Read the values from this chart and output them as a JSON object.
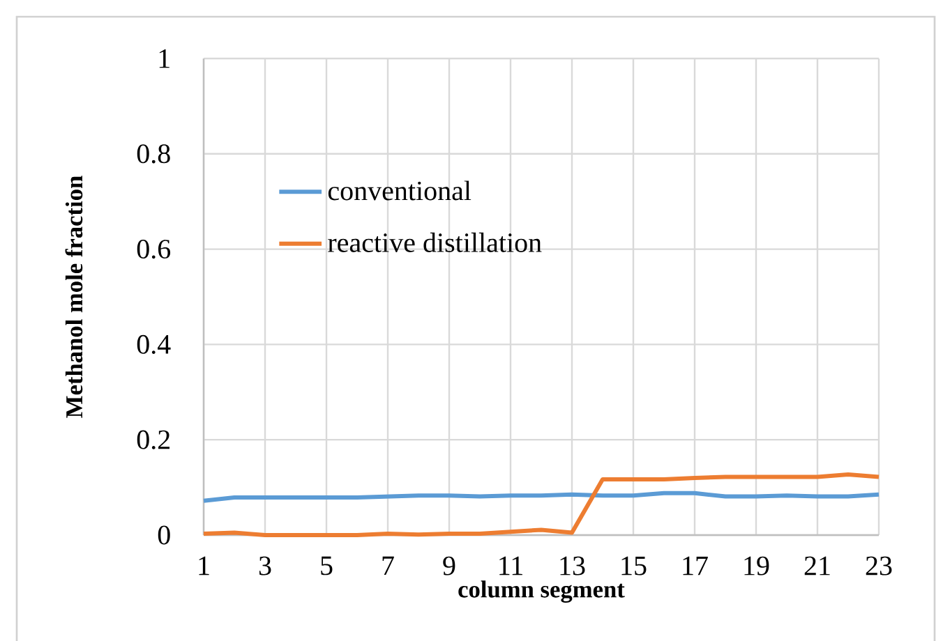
{
  "chart_data": {
    "type": "line",
    "xlabel": "column segment",
    "ylabel": "Methanol mole fraction",
    "categories": [
      "1",
      null,
      "3",
      null,
      "5",
      null,
      "7",
      null,
      "9",
      null,
      "11",
      null,
      "13",
      null,
      "15",
      null,
      "17",
      null,
      "19",
      null,
      "21",
      null,
      "23"
    ],
    "series": [
      {
        "name": "conventional",
        "color": "#5b9bd5",
        "values": [
          0.072,
          0.079,
          0.079,
          0.079,
          0.079,
          0.079,
          0.081,
          0.083,
          0.083,
          0.081,
          0.083,
          0.083,
          0.085,
          0.083,
          0.083,
          0.088,
          0.088,
          0.081,
          0.081,
          0.083,
          0.081,
          0.081,
          0.085
        ]
      },
      {
        "name": "reactive distillation",
        "color": "#ed7d31",
        "values": [
          0.003,
          0.005,
          0.0,
          0.0,
          0.0,
          0.0,
          0.003,
          0.001,
          0.003,
          0.003,
          0.007,
          0.011,
          0.005,
          0.117,
          0.117,
          0.117,
          0.12,
          0.122,
          0.122,
          0.122,
          0.122,
          0.127,
          0.122
        ]
      }
    ],
    "ylim": [
      0,
      1
    ],
    "yticks": [
      0,
      0.2,
      0.4,
      0.6,
      0.8,
      1
    ],
    "grid": true,
    "legend": "top left",
    "marker": "none",
    "line_style": "solid"
  }
}
